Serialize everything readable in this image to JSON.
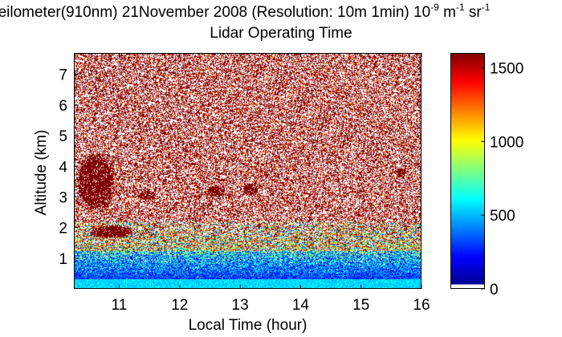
{
  "title": {
    "line1_main": "eilometer(910nm) 21November 2008 (Resolution: 10m 1min) 10",
    "line1_exp1": "-9",
    "line1_unit1": " m",
    "line1_exp2": "-1",
    "line1_unit2": " sr",
    "line1_exp3": "-1",
    "line2": "Lidar Operating Time"
  },
  "colors": {
    "colormap": [
      "#ffffff",
      "#00008f",
      "#0000ff",
      "#00ffff",
      "#ffff00",
      "#ff0000",
      "#800000"
    ],
    "background": "#ffffff"
  },
  "chart_data": {
    "type": "heatmap",
    "xlabel": "Local Time (hour)",
    "ylabel": "Altitude (km)",
    "xlim": [
      10.25,
      16.0
    ],
    "ylim": [
      0.0,
      7.7
    ],
    "xticks": [
      "11",
      "12",
      "13",
      "14",
      "15",
      "16"
    ],
    "xtick_values": [
      11,
      12,
      13,
      14,
      15,
      16
    ],
    "yticks": [
      "1",
      "2",
      "3",
      "4",
      "5",
      "6",
      "7"
    ],
    "ytick_values": [
      1,
      2,
      3,
      4,
      5,
      6,
      7
    ],
    "colorbar": {
      "clim": [
        0,
        1600
      ],
      "ticks": [
        "0",
        "500",
        "1000",
        "1500"
      ],
      "tick_values": [
        0,
        500,
        1000,
        1500
      ],
      "colormap": "jet"
    },
    "layers": [
      {
        "name": "",
        "altitude_km": [
          0.0,
          0.3
        ],
        "value": 500
      },
      {
        "name": "",
        "altitude_km": [
          0.3,
          1.2
        ],
        "value": 250
      },
      {
        "name": "",
        "altitude_km": [
          1.2,
          2.2
        ],
        "value": 700
      },
      {
        "name": "",
        "altitude_km": [
          2.2,
          7.7
        ],
        "value": 1600
      }
    ],
    "features": [
      {
        "time_h": [
          10.3,
          10.9
        ],
        "altitude_km": [
          2.6,
          4.4
        ],
        "value": 1600
      },
      {
        "time_h": [
          10.5,
          11.2
        ],
        "altitude_km": [
          1.65,
          2.05
        ],
        "value": 1600
      },
      {
        "time_h": [
          11.3,
          11.6
        ],
        "altitude_km": [
          2.9,
          3.15
        ],
        "value": 1600
      },
      {
        "time_h": [
          12.45,
          12.75
        ],
        "altitude_km": [
          3.0,
          3.35
        ],
        "value": 1600
      },
      {
        "time_h": [
          13.05,
          13.3
        ],
        "altitude_km": [
          3.05,
          3.45
        ],
        "value": 1600
      },
      {
        "time_h": [
          15.6,
          15.75
        ],
        "altitude_km": [
          3.7,
          3.95
        ],
        "value": 1600
      }
    ]
  }
}
